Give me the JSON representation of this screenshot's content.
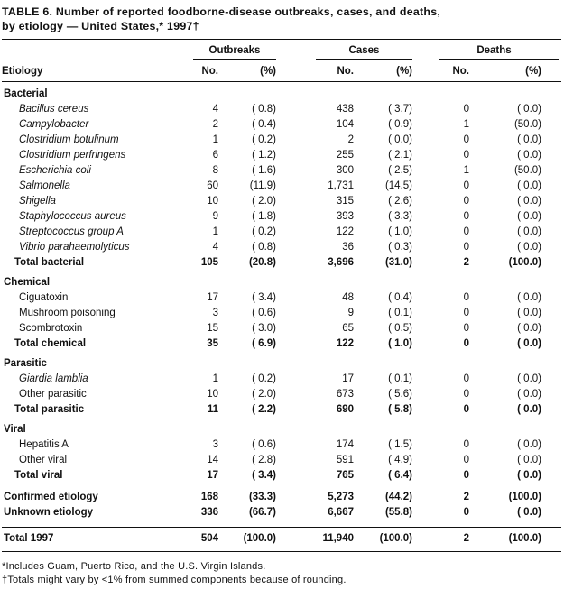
{
  "title": {
    "line1": "TABLE 6. Number of reported foodborne-disease outbreaks, cases, and deaths,",
    "line2": "by etiology — United States,* 1997†"
  },
  "columns": {
    "etiology": "Etiology",
    "groups": [
      "Outbreaks",
      "Cases",
      "Deaths"
    ],
    "sub_no": "No.",
    "sub_pct": "(%)"
  },
  "rows": [
    {
      "label": "Bacterial",
      "style": "section",
      "values": null
    },
    {
      "label": "Bacillus cereus",
      "style": "italic",
      "values": [
        "4",
        "( 0.8)",
        "438",
        "( 3.7)",
        "0",
        "( 0.0)"
      ]
    },
    {
      "label": "Campylobacter",
      "style": "italic",
      "values": [
        "2",
        "( 0.4)",
        "104",
        "( 0.9)",
        "1",
        "(50.0)"
      ]
    },
    {
      "label": "Clostridium botulinum",
      "style": "italic",
      "values": [
        "1",
        "( 0.2)",
        "2",
        "( 0.0)",
        "0",
        "( 0.0)"
      ]
    },
    {
      "label": "Clostridium perfringens",
      "style": "italic",
      "values": [
        "6",
        "( 1.2)",
        "255",
        "( 2.1)",
        "0",
        "( 0.0)"
      ]
    },
    {
      "label": "Escherichia coli",
      "style": "italic",
      "values": [
        "8",
        "( 1.6)",
        "300",
        "( 2.5)",
        "1",
        "(50.0)"
      ]
    },
    {
      "label": "Salmonella",
      "style": "italic",
      "values": [
        "60",
        "(11.9)",
        "1,731",
        "(14.5)",
        "0",
        "( 0.0)"
      ]
    },
    {
      "label": "Shigella",
      "style": "italic",
      "values": [
        "10",
        "( 2.0)",
        "315",
        "( 2.6)",
        "0",
        "( 0.0)"
      ]
    },
    {
      "label": "Staphylococcus aureus",
      "style": "italic",
      "values": [
        "9",
        "( 1.8)",
        "393",
        "( 3.3)",
        "0",
        "( 0.0)"
      ]
    },
    {
      "label": "Streptococcus group A",
      "style": "italic",
      "values": [
        "1",
        "( 0.2)",
        "122",
        "( 1.0)",
        "0",
        "( 0.0)"
      ]
    },
    {
      "label": "Vibrio parahaemolyticus",
      "style": "italic",
      "values": [
        "4",
        "( 0.8)",
        "36",
        "( 0.3)",
        "0",
        "( 0.0)"
      ]
    },
    {
      "label": "Total bacterial",
      "style": "total",
      "values": [
        "105",
        "(20.8)",
        "3,696",
        "(31.0)",
        "2",
        "(100.0)"
      ]
    },
    {
      "label": "Chemical",
      "style": "section",
      "values": null
    },
    {
      "label": "Ciguatoxin",
      "style": "item",
      "values": [
        "17",
        "( 3.4)",
        "48",
        "( 0.4)",
        "0",
        "( 0.0)"
      ]
    },
    {
      "label": "Mushroom poisoning",
      "style": "item",
      "values": [
        "3",
        "( 0.6)",
        "9",
        "( 0.1)",
        "0",
        "( 0.0)"
      ]
    },
    {
      "label": "Scombrotoxin",
      "style": "item",
      "values": [
        "15",
        "( 3.0)",
        "65",
        "( 0.5)",
        "0",
        "( 0.0)"
      ]
    },
    {
      "label": "Total chemical",
      "style": "total",
      "values": [
        "35",
        "( 6.9)",
        "122",
        "( 1.0)",
        "0",
        "( 0.0)"
      ]
    },
    {
      "label": "Parasitic",
      "style": "section",
      "values": null
    },
    {
      "label": "Giardia lamblia",
      "style": "italic",
      "values": [
        "1",
        "( 0.2)",
        "17",
        "( 0.1)",
        "0",
        "( 0.0)"
      ]
    },
    {
      "label": "Other parasitic",
      "style": "item",
      "values": [
        "10",
        "( 2.0)",
        "673",
        "( 5.6)",
        "0",
        "( 0.0)"
      ]
    },
    {
      "label": "Total parasitic",
      "style": "total",
      "values": [
        "11",
        "( 2.2)",
        "690",
        "( 5.8)",
        "0",
        "( 0.0)"
      ]
    },
    {
      "label": "Viral",
      "style": "section",
      "values": null
    },
    {
      "label": "Hepatitis A",
      "style": "item",
      "values": [
        "3",
        "( 0.6)",
        "174",
        "( 1.5)",
        "0",
        "( 0.0)"
      ]
    },
    {
      "label": "Other viral",
      "style": "item",
      "values": [
        "14",
        "( 2.8)",
        "591",
        "( 4.9)",
        "0",
        "( 0.0)"
      ]
    },
    {
      "label": "Total viral",
      "style": "total",
      "values": [
        "17",
        "( 3.4)",
        "765",
        "( 6.4)",
        "0",
        "( 0.0)"
      ]
    },
    {
      "label": "Confirmed etiology",
      "style": "grand",
      "values": [
        "168",
        "(33.3)",
        "5,273",
        "(44.2)",
        "2",
        "(100.0)"
      ]
    },
    {
      "label": "Unknown etiology",
      "style": "grand",
      "values": [
        "336",
        "(66.7)",
        "6,667",
        "(55.8)",
        "0",
        "( 0.0)"
      ]
    },
    {
      "label": "Total 1997",
      "style": "final",
      "values": [
        "504",
        "(100.0)",
        "11,940",
        "(100.0)",
        "2",
        "(100.0)"
      ]
    }
  ],
  "footnotes": [
    "*Includes Guam, Puerto Rico, and the U.S. Virgin Islands.",
    "†Totals might vary by <1% from summed components because of rounding."
  ]
}
